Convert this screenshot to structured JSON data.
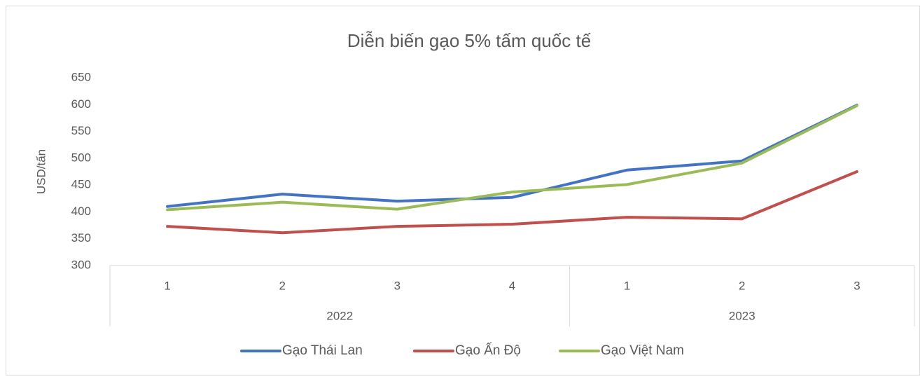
{
  "chart_data": {
    "type": "line",
    "title": "Diễn biến gạo 5% tấm quốc tế",
    "y_label": "USD/tấn",
    "category_groups": [
      {
        "label": "2022",
        "categories": [
          "1",
          "2",
          "3",
          "4"
        ]
      },
      {
        "label": "2023",
        "categories": [
          "1",
          "2",
          "3"
        ]
      }
    ],
    "series": [
      {
        "name": "Gạo Thái Lan",
        "color": "#4472c4",
        "values": [
          410,
          433,
          420,
          427,
          478,
          495,
          599
        ]
      },
      {
        "name": "Gạo Ấn Độ",
        "color": "#c0504d",
        "values": [
          373,
          361,
          373,
          377,
          390,
          387,
          475
        ]
      },
      {
        "name": "Gạo Việt Nam",
        "color": "#9bbb59",
        "values": [
          404,
          418,
          405,
          437,
          451,
          491,
          598
        ]
      }
    ],
    "ylim": [
      300,
      650
    ],
    "yticks": [
      300,
      350,
      400,
      450,
      500,
      550,
      600,
      650
    ],
    "grid": false,
    "legend": "bottom"
  }
}
